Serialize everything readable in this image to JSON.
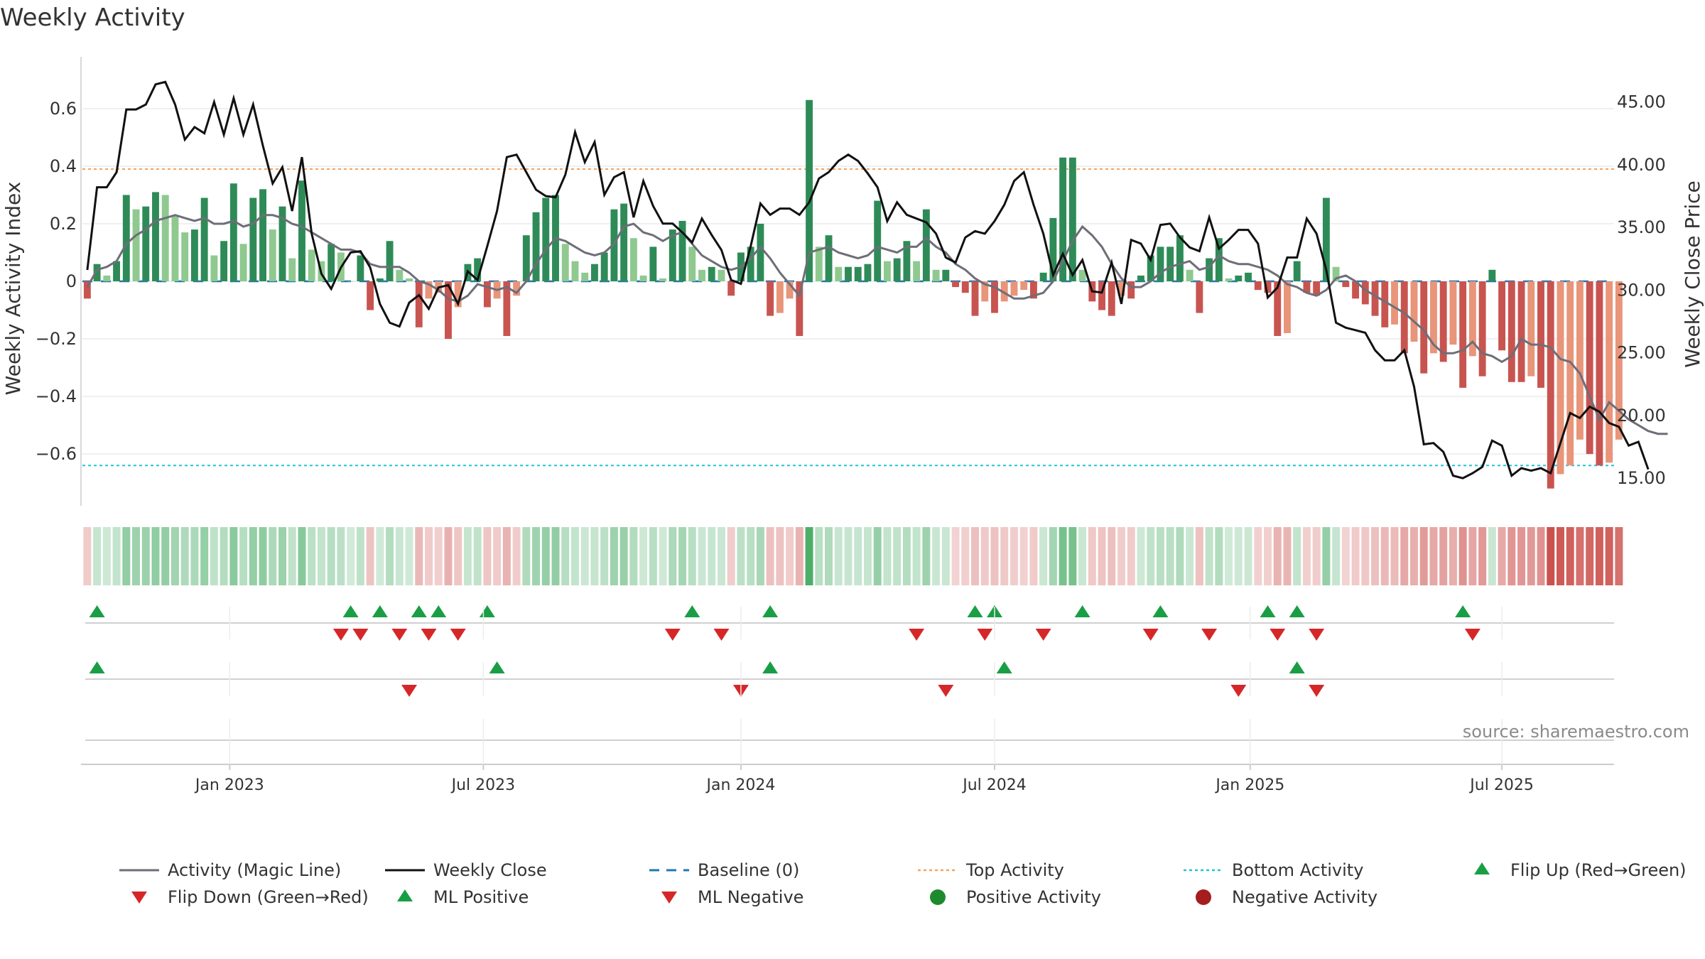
{
  "title": "Weekly Activity",
  "source": "source: sharemaestro.com",
  "colors": {
    "green_dark": "#2e8b57",
    "green_light": "#8fc98f",
    "red_dark": "#c85450",
    "red_light": "#e8957a",
    "magic_line": "#6e6e78",
    "close_line": "#111111",
    "baseline": "#1f77b4",
    "top": "#f4a261",
    "bottom": "#22c3d6",
    "marker_up": "#1a9e45",
    "marker_down": "#d62728",
    "grid": "#ebebeb",
    "axis": "#cccccc",
    "text": "#333333"
  },
  "chart_data": {
    "type": "bar+line",
    "title": "Weekly Activity",
    "ylabel_left": "Weekly Activity Index",
    "ylabel_right": "Weekly Close Price",
    "yticks_left": [
      0.6,
      0.4,
      0.2,
      0,
      -0.2,
      -0.4,
      -0.6
    ],
    "ytick_labels_left": [
      "0.6",
      "0.4",
      "0.2",
      "0",
      "−0.2",
      "−0.4",
      "−0.6"
    ],
    "yticks_right": [
      45,
      40,
      35,
      30,
      25,
      20,
      15
    ],
    "ytick_labels_right": [
      "45.00",
      "40.00",
      "35.00",
      "30.00",
      "25.00",
      "20.00",
      "15.00"
    ],
    "ylim_left": [
      -0.78,
      0.78
    ],
    "ylim_right": [
      12.8,
      48.6
    ],
    "xlim_weeks": [
      0,
      157
    ],
    "xticks": [
      {
        "week": 14.6,
        "label": "Jan 2023"
      },
      {
        "week": 40.6,
        "label": "Jul 2023"
      },
      {
        "week": 67.0,
        "label": "Jan 2024"
      },
      {
        "week": 93.0,
        "label": "Jul 2024"
      },
      {
        "week": 119.2,
        "label": "Jan 2025"
      },
      {
        "week": 145.0,
        "label": "Jul 2025"
      }
    ],
    "top_activity": 0.39,
    "bottom_activity": -0.64,
    "bars": [
      -0.06,
      0.06,
      0.02,
      0.07,
      0.3,
      0.25,
      0.26,
      0.31,
      0.3,
      0.23,
      0.17,
      0.18,
      0.29,
      0.09,
      0.14,
      0.34,
      0.13,
      0.29,
      0.32,
      0.18,
      0.26,
      0.08,
      0.35,
      0.11,
      0.07,
      0.13,
      0.1,
      0.0,
      0.09,
      -0.1,
      0.01,
      0.14,
      0.04,
      0.01,
      -0.16,
      -0.06,
      -0.04,
      -0.2,
      -0.09,
      0.06,
      0.08,
      -0.09,
      -0.06,
      -0.19,
      -0.05,
      0.16,
      0.24,
      0.29,
      0.3,
      0.13,
      0.07,
      0.03,
      0.06,
      0.1,
      0.25,
      0.27,
      0.15,
      0.02,
      0.12,
      0.01,
      0.18,
      0.21,
      0.12,
      0.04,
      0.05,
      0.04,
      -0.05,
      0.1,
      0.12,
      0.2,
      -0.12,
      -0.11,
      -0.06,
      -0.19,
      0.63,
      0.12,
      0.16,
      0.05,
      0.05,
      0.05,
      0.06,
      0.28,
      0.07,
      0.08,
      0.14,
      0.07,
      0.25,
      0.04,
      0.04,
      -0.02,
      -0.04,
      -0.12,
      -0.07,
      -0.11,
      -0.07,
      -0.05,
      -0.03,
      -0.06,
      0.03,
      0.22,
      0.43,
      0.43,
      0.04,
      -0.07,
      -0.1,
      -0.12,
      -0.05,
      -0.06,
      0.02,
      0.09,
      0.12,
      0.12,
      0.16,
      0.04,
      -0.11,
      0.08,
      0.15,
      0.01,
      0.02,
      0.03,
      -0.03,
      -0.04,
      -0.19,
      -0.18,
      0.07,
      -0.04,
      -0.05,
      0.29,
      0.05,
      -0.02,
      -0.06,
      -0.08,
      -0.12,
      -0.16,
      -0.15,
      -0.25,
      -0.21,
      -0.32,
      -0.25,
      -0.28,
      -0.22,
      -0.37,
      -0.26,
      -0.33,
      0.04,
      -0.24,
      -0.35,
      -0.35,
      -0.33,
      -0.37,
      -0.72,
      -0.67,
      -0.64,
      -0.55,
      -0.6,
      -0.64,
      -0.63,
      -0.55
    ],
    "close": [
      31.6,
      38.2,
      38.2,
      39.4,
      44.4,
      44.4,
      44.8,
      46.4,
      46.6,
      44.8,
      42.0,
      43.0,
      42.5,
      45.0,
      42.4,
      45.3,
      42.4,
      44.8,
      41.5,
      38.5,
      39.8,
      36.3,
      40.6,
      34.5,
      31.3,
      30.1,
      31.8,
      33.0,
      33.1,
      31.8,
      28.9,
      27.4,
      27.1,
      29.0,
      29.6,
      28.5,
      30.2,
      30.4,
      28.9,
      31.5,
      30.8,
      33.5,
      36.3,
      40.6,
      40.8,
      39.4,
      38.0,
      37.5,
      37.4,
      39.2,
      42.6,
      40.2,
      41.8,
      37.6,
      39.0,
      39.4,
      35.8,
      38.7,
      36.7,
      35.3,
      35.3,
      34.6,
      33.8,
      35.7,
      34.4,
      33.2,
      30.8,
      30.5,
      33.5,
      36.9,
      36.0,
      36.5,
      36.5,
      36.0,
      37.0,
      38.9,
      39.4,
      40.3,
      40.8,
      40.3,
      39.3,
      38.2,
      35.5,
      37.0,
      36.0,
      35.7,
      35.4,
      34.5,
      32.6,
      32.2,
      34.2,
      34.7,
      34.5,
      35.5,
      36.8,
      38.7,
      39.4,
      36.8,
      34.5,
      31.2,
      32.9,
      31.2,
      32.4,
      29.9,
      29.8,
      32.2,
      28.9,
      34.0,
      33.7,
      32.4,
      35.2,
      35.3,
      34.2,
      33.4,
      33.1,
      35.8,
      33.3,
      34.0,
      34.8,
      34.8,
      33.7,
      29.4,
      30.2,
      32.6,
      32.6,
      35.7,
      34.5,
      31.6,
      27.4,
      27.0,
      26.8,
      26.6,
      25.2,
      24.4,
      24.4,
      25.2,
      22.3,
      17.7,
      17.8,
      17.1,
      15.2,
      15.0,
      15.4,
      15.9,
      18.0,
      17.6,
      15.2,
      15.8,
      15.6,
      15.8,
      15.4,
      17.8,
      20.2,
      19.8,
      20.7,
      20.3,
      19.4,
      19.1,
      17.6,
      17.9,
      15.7
    ],
    "magic": [
      -0.02,
      0.04,
      0.05,
      0.07,
      0.13,
      0.16,
      0.18,
      0.21,
      0.22,
      0.23,
      0.22,
      0.21,
      0.22,
      0.2,
      0.2,
      0.21,
      0.19,
      0.2,
      0.23,
      0.23,
      0.22,
      0.2,
      0.19,
      0.17,
      0.15,
      0.13,
      0.11,
      0.11,
      0.1,
      0.06,
      0.05,
      0.05,
      0.05,
      0.03,
      0.0,
      -0.01,
      -0.03,
      -0.06,
      -0.07,
      -0.05,
      -0.01,
      -0.02,
      -0.03,
      -0.02,
      -0.04,
      0.0,
      0.06,
      0.11,
      0.15,
      0.14,
      0.12,
      0.1,
      0.09,
      0.1,
      0.13,
      0.19,
      0.2,
      0.17,
      0.16,
      0.14,
      0.16,
      0.17,
      0.13,
      0.09,
      0.07,
      0.05,
      0.04,
      0.05,
      0.08,
      0.12,
      0.08,
      0.03,
      -0.01,
      -0.05,
      0.1,
      0.11,
      0.12,
      0.1,
      0.09,
      0.08,
      0.09,
      0.12,
      0.11,
      0.1,
      0.12,
      0.12,
      0.15,
      0.12,
      0.1,
      0.06,
      0.04,
      0.01,
      -0.01,
      -0.02,
      -0.04,
      -0.06,
      -0.06,
      -0.05,
      -0.04,
      0.0,
      0.07,
      0.14,
      0.19,
      0.16,
      0.12,
      0.06,
      0.01,
      -0.02,
      -0.02,
      0.0,
      0.03,
      0.05,
      0.06,
      0.07,
      0.04,
      0.05,
      0.09,
      0.07,
      0.06,
      0.06,
      0.05,
      0.04,
      0.02,
      -0.01,
      -0.02,
      -0.04,
      -0.05,
      -0.03,
      0.01,
      0.02,
      0.0,
      -0.03,
      -0.05,
      -0.07,
      -0.09,
      -0.11,
      -0.14,
      -0.17,
      -0.22,
      -0.25,
      -0.25,
      -0.24,
      -0.21,
      -0.25,
      -0.26,
      -0.28,
      -0.26,
      -0.2,
      -0.22,
      -0.22,
      -0.23,
      -0.27,
      -0.28,
      -0.32,
      -0.4,
      -0.48,
      -0.42,
      -0.45,
      -0.48,
      -0.5,
      -0.52,
      -0.53,
      -0.53
    ],
    "activity_strip_note": "color band mirrors bar sign/strength per week",
    "flip_up_weeks": [
      1,
      27,
      30,
      34,
      36,
      41,
      62,
      70,
      91,
      93,
      102,
      110,
      121,
      124,
      141
    ],
    "flip_down_weeks": [
      26,
      28,
      32,
      35,
      38,
      60,
      65,
      85,
      92,
      98,
      109,
      115,
      122,
      126,
      142
    ],
    "ml_positive_weeks": [
      1,
      42,
      70,
      94,
      124
    ],
    "ml_negative_weeks": [
      33,
      67,
      88,
      118,
      126
    ],
    "legend": [
      {
        "label": "Activity (Magic Line)",
        "style": "line",
        "color": "#6e6e78"
      },
      {
        "label": "Weekly Close",
        "style": "line",
        "color": "#111111"
      },
      {
        "label": "Baseline (0)",
        "style": "dashed",
        "color": "#1f77b4"
      },
      {
        "label": "Top Activity",
        "style": "dotted",
        "color": "#f4a261"
      },
      {
        "label": "Bottom Activity",
        "style": "dotted",
        "color": "#22c3d6"
      },
      {
        "label": "Flip Up (Red→Green)",
        "style": "tri-up",
        "color": "#1a9e45"
      },
      {
        "label": "Flip Down (Green→Red)",
        "style": "tri-down",
        "color": "#d62728"
      },
      {
        "label": "ML Positive",
        "style": "tri-up",
        "color": "#1a9e45"
      },
      {
        "label": "ML Negative",
        "style": "tri-down",
        "color": "#d62728"
      },
      {
        "label": "Positive Activity",
        "style": "dot",
        "color": "#1e8a2e"
      },
      {
        "label": "Negative Activity",
        "style": "dot",
        "color": "#a51d1d"
      }
    ]
  }
}
